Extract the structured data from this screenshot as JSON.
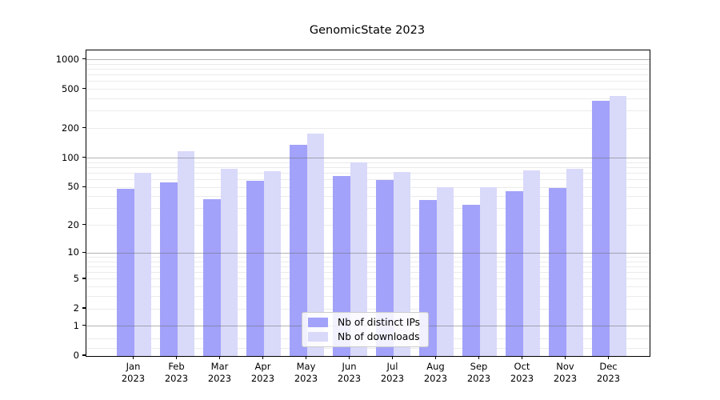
{
  "chart_data": {
    "type": "bar",
    "title": "GenomicState 2023",
    "categories": [
      "Jan",
      "Feb",
      "Mar",
      "Apr",
      "May",
      "Jun",
      "Jul",
      "Aug",
      "Sep",
      "Oct",
      "Nov",
      "Dec"
    ],
    "category_year": "2023",
    "series": [
      {
        "name": "Nb of distinct IPs",
        "color": "#a2a2fa",
        "values": [
          48,
          56,
          38,
          58,
          136,
          65,
          60,
          37,
          33,
          46,
          49,
          380
        ]
      },
      {
        "name": "Nb of downloads",
        "color": "#d9d9fa",
        "values": [
          71,
          118,
          77,
          73,
          176,
          90,
          72,
          50,
          50,
          74,
          77,
          430
        ]
      }
    ],
    "yscale": "log1p",
    "ylim": [
      0,
      1240
    ],
    "yticks": [
      0,
      1,
      2,
      5,
      10,
      20,
      50,
      100,
      200,
      500,
      1000
    ],
    "grid": {
      "major": [
        1,
        10,
        100,
        1000
      ],
      "minor": [
        0.2,
        0.5,
        2,
        3,
        4,
        5,
        6,
        7,
        8,
        9,
        20,
        30,
        40,
        50,
        60,
        70,
        80,
        90,
        200,
        300,
        400,
        500,
        600,
        700,
        800,
        900
      ]
    },
    "legend": {
      "position": "lower center"
    },
    "colors": {
      "bar_dark": "#a2a2fa",
      "bar_light": "#d9d9fa",
      "major_grid": "#b0b0b0",
      "minor_grid": "#ebebeb",
      "spine": "#000000"
    }
  }
}
